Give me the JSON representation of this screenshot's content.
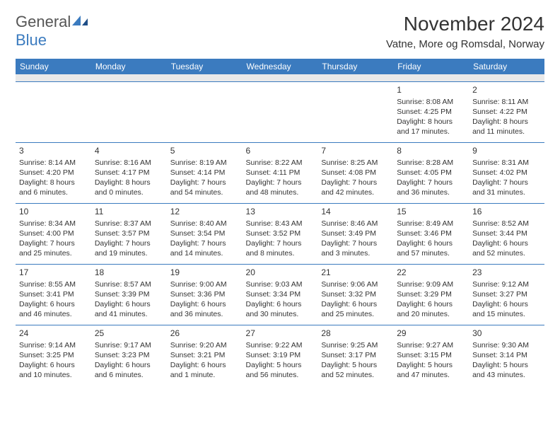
{
  "header": {
    "logo_general": "General",
    "logo_blue": "Blue",
    "month_title": "November 2024",
    "location": "Vatne, More og Romsdal, Norway"
  },
  "colors": {
    "header_bg": "#3b7bbf",
    "header_text": "#ffffff",
    "row_divider": "#3b7bbf",
    "spacer_bg": "#e9e9e9",
    "body_text": "#333333",
    "logo_gray": "#555555",
    "logo_blue": "#3b7bbf",
    "page_bg": "#ffffff"
  },
  "day_headers": [
    "Sunday",
    "Monday",
    "Tuesday",
    "Wednesday",
    "Thursday",
    "Friday",
    "Saturday"
  ],
  "weeks": [
    [
      null,
      null,
      null,
      null,
      null,
      {
        "n": "1",
        "sr": "Sunrise: 8:08 AM",
        "ss": "Sunset: 4:25 PM",
        "d1": "Daylight: 8 hours",
        "d2": "and 17 minutes."
      },
      {
        "n": "2",
        "sr": "Sunrise: 8:11 AM",
        "ss": "Sunset: 4:22 PM",
        "d1": "Daylight: 8 hours",
        "d2": "and 11 minutes."
      }
    ],
    [
      {
        "n": "3",
        "sr": "Sunrise: 8:14 AM",
        "ss": "Sunset: 4:20 PM",
        "d1": "Daylight: 8 hours",
        "d2": "and 6 minutes."
      },
      {
        "n": "4",
        "sr": "Sunrise: 8:16 AM",
        "ss": "Sunset: 4:17 PM",
        "d1": "Daylight: 8 hours",
        "d2": "and 0 minutes."
      },
      {
        "n": "5",
        "sr": "Sunrise: 8:19 AM",
        "ss": "Sunset: 4:14 PM",
        "d1": "Daylight: 7 hours",
        "d2": "and 54 minutes."
      },
      {
        "n": "6",
        "sr": "Sunrise: 8:22 AM",
        "ss": "Sunset: 4:11 PM",
        "d1": "Daylight: 7 hours",
        "d2": "and 48 minutes."
      },
      {
        "n": "7",
        "sr": "Sunrise: 8:25 AM",
        "ss": "Sunset: 4:08 PM",
        "d1": "Daylight: 7 hours",
        "d2": "and 42 minutes."
      },
      {
        "n": "8",
        "sr": "Sunrise: 8:28 AM",
        "ss": "Sunset: 4:05 PM",
        "d1": "Daylight: 7 hours",
        "d2": "and 36 minutes."
      },
      {
        "n": "9",
        "sr": "Sunrise: 8:31 AM",
        "ss": "Sunset: 4:02 PM",
        "d1": "Daylight: 7 hours",
        "d2": "and 31 minutes."
      }
    ],
    [
      {
        "n": "10",
        "sr": "Sunrise: 8:34 AM",
        "ss": "Sunset: 4:00 PM",
        "d1": "Daylight: 7 hours",
        "d2": "and 25 minutes."
      },
      {
        "n": "11",
        "sr": "Sunrise: 8:37 AM",
        "ss": "Sunset: 3:57 PM",
        "d1": "Daylight: 7 hours",
        "d2": "and 19 minutes."
      },
      {
        "n": "12",
        "sr": "Sunrise: 8:40 AM",
        "ss": "Sunset: 3:54 PM",
        "d1": "Daylight: 7 hours",
        "d2": "and 14 minutes."
      },
      {
        "n": "13",
        "sr": "Sunrise: 8:43 AM",
        "ss": "Sunset: 3:52 PM",
        "d1": "Daylight: 7 hours",
        "d2": "and 8 minutes."
      },
      {
        "n": "14",
        "sr": "Sunrise: 8:46 AM",
        "ss": "Sunset: 3:49 PM",
        "d1": "Daylight: 7 hours",
        "d2": "and 3 minutes."
      },
      {
        "n": "15",
        "sr": "Sunrise: 8:49 AM",
        "ss": "Sunset: 3:46 PM",
        "d1": "Daylight: 6 hours",
        "d2": "and 57 minutes."
      },
      {
        "n": "16",
        "sr": "Sunrise: 8:52 AM",
        "ss": "Sunset: 3:44 PM",
        "d1": "Daylight: 6 hours",
        "d2": "and 52 minutes."
      }
    ],
    [
      {
        "n": "17",
        "sr": "Sunrise: 8:55 AM",
        "ss": "Sunset: 3:41 PM",
        "d1": "Daylight: 6 hours",
        "d2": "and 46 minutes."
      },
      {
        "n": "18",
        "sr": "Sunrise: 8:57 AM",
        "ss": "Sunset: 3:39 PM",
        "d1": "Daylight: 6 hours",
        "d2": "and 41 minutes."
      },
      {
        "n": "19",
        "sr": "Sunrise: 9:00 AM",
        "ss": "Sunset: 3:36 PM",
        "d1": "Daylight: 6 hours",
        "d2": "and 36 minutes."
      },
      {
        "n": "20",
        "sr": "Sunrise: 9:03 AM",
        "ss": "Sunset: 3:34 PM",
        "d1": "Daylight: 6 hours",
        "d2": "and 30 minutes."
      },
      {
        "n": "21",
        "sr": "Sunrise: 9:06 AM",
        "ss": "Sunset: 3:32 PM",
        "d1": "Daylight: 6 hours",
        "d2": "and 25 minutes."
      },
      {
        "n": "22",
        "sr": "Sunrise: 9:09 AM",
        "ss": "Sunset: 3:29 PM",
        "d1": "Daylight: 6 hours",
        "d2": "and 20 minutes."
      },
      {
        "n": "23",
        "sr": "Sunrise: 9:12 AM",
        "ss": "Sunset: 3:27 PM",
        "d1": "Daylight: 6 hours",
        "d2": "and 15 minutes."
      }
    ],
    [
      {
        "n": "24",
        "sr": "Sunrise: 9:14 AM",
        "ss": "Sunset: 3:25 PM",
        "d1": "Daylight: 6 hours",
        "d2": "and 10 minutes."
      },
      {
        "n": "25",
        "sr": "Sunrise: 9:17 AM",
        "ss": "Sunset: 3:23 PM",
        "d1": "Daylight: 6 hours",
        "d2": "and 6 minutes."
      },
      {
        "n": "26",
        "sr": "Sunrise: 9:20 AM",
        "ss": "Sunset: 3:21 PM",
        "d1": "Daylight: 6 hours",
        "d2": "and 1 minute."
      },
      {
        "n": "27",
        "sr": "Sunrise: 9:22 AM",
        "ss": "Sunset: 3:19 PM",
        "d1": "Daylight: 5 hours",
        "d2": "and 56 minutes."
      },
      {
        "n": "28",
        "sr": "Sunrise: 9:25 AM",
        "ss": "Sunset: 3:17 PM",
        "d1": "Daylight: 5 hours",
        "d2": "and 52 minutes."
      },
      {
        "n": "29",
        "sr": "Sunrise: 9:27 AM",
        "ss": "Sunset: 3:15 PM",
        "d1": "Daylight: 5 hours",
        "d2": "and 47 minutes."
      },
      {
        "n": "30",
        "sr": "Sunrise: 9:30 AM",
        "ss": "Sunset: 3:14 PM",
        "d1": "Daylight: 5 hours",
        "d2": "and 43 minutes."
      }
    ]
  ]
}
